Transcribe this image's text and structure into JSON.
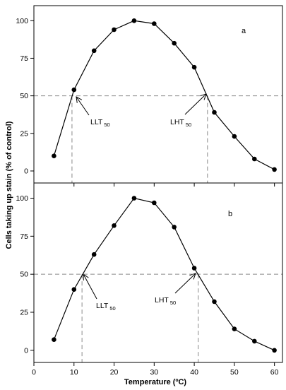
{
  "y_axis_title": "Cells taking up stain (%  of control)",
  "x_axis_title": "Temperature (ºC)",
  "x_ticks": [
    "0",
    "10",
    "20",
    "30",
    "40",
    "50",
    "60"
  ],
  "y_ticks": [
    "0",
    "25",
    "50",
    "75",
    "100"
  ],
  "panels": [
    {
      "letter": "a",
      "llt_main": "LLT",
      "llt_sub": "50",
      "lht_main": "LHT",
      "lht_sub": "50"
    },
    {
      "letter": "b",
      "llt_main": "LLT",
      "llt_sub": "50",
      "lht_main": "LHT",
      "lht_sub": "50"
    }
  ],
  "chart_data": [
    {
      "type": "line",
      "panel": "a",
      "x": [
        5,
        10,
        15,
        20,
        25,
        30,
        35,
        40,
        45,
        50,
        55,
        60
      ],
      "series": [
        {
          "values": [
            10,
            54,
            80,
            94,
            100,
            98,
            85,
            69,
            39,
            23,
            8,
            1
          ]
        }
      ],
      "xlim": [
        0,
        62
      ],
      "ylim": [
        -8,
        110
      ],
      "reference": {
        "y": 50,
        "llt_x": 9.5,
        "lht_x": 43.3
      },
      "xlabel": "Temperature (ºC)",
      "ylabel": "Cells taking up stain (%  of control)"
    },
    {
      "type": "line",
      "panel": "b",
      "x": [
        5,
        10,
        15,
        20,
        25,
        30,
        35,
        40,
        45,
        50,
        55,
        60
      ],
      "series": [
        {
          "values": [
            7,
            40,
            63,
            82,
            100,
            97,
            81,
            54,
            32,
            14,
            6,
            0
          ]
        }
      ],
      "xlim": [
        0,
        62
      ],
      "ylim": [
        -8,
        110
      ],
      "reference": {
        "y": 50,
        "llt_x": 12,
        "lht_x": 41
      },
      "xlabel": "Temperature (ºC)",
      "ylabel": "Cells taking up stain (%  of control)"
    }
  ]
}
